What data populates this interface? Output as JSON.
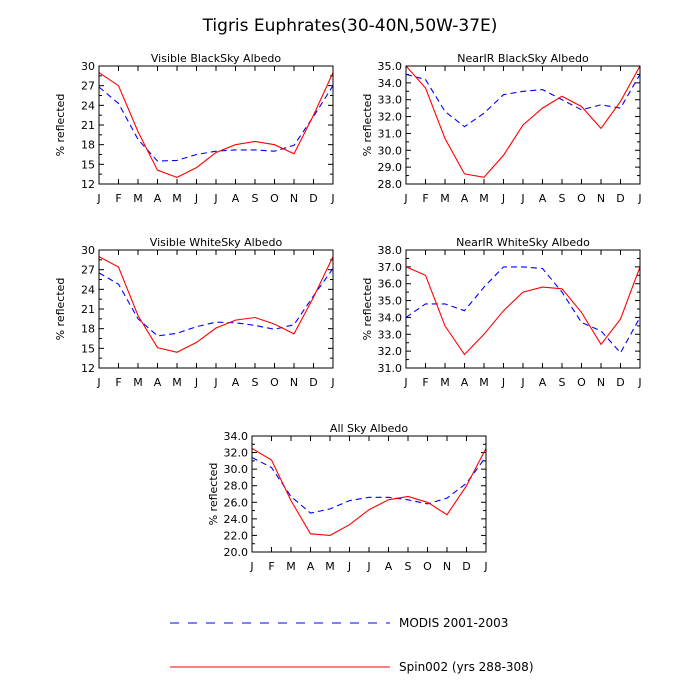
{
  "figure": {
    "title": "Tigris Euphrates(30-40N,50W-37E)",
    "legend": [
      {
        "label": "MODIS 2001-2003",
        "color": "#0000ff",
        "dash": "dashed"
      },
      {
        "label": "Spin002 (yrs 288-308)",
        "color": "#ff0000",
        "dash": "solid"
      }
    ]
  },
  "chart_data": [
    {
      "type": "line",
      "title": "Visible BlackSky Albedo",
      "ylabel": "% reflected",
      "categories": [
        "J",
        "F",
        "M",
        "A",
        "M",
        "J",
        "J",
        "A",
        "S",
        "O",
        "N",
        "D",
        "J"
      ],
      "ylim": [
        12,
        30
      ],
      "yticks": [
        "12",
        "15",
        "18",
        "21",
        "24",
        "27",
        "30"
      ],
      "series": [
        {
          "name": "MODIS 2001-2003",
          "color": "#0000ff",
          "dash": "dashed",
          "values": [
            26.8,
            24.3,
            18.8,
            15.5,
            15.6,
            16.5,
            17.0,
            17.2,
            17.2,
            17.0,
            17.9,
            22.3,
            27.0
          ]
        },
        {
          "name": "Spin002 (yrs 288-308)",
          "color": "#ff0000",
          "dash": "solid",
          "values": [
            29.0,
            27.0,
            20.0,
            14.1,
            13.0,
            14.5,
            16.8,
            18.0,
            18.5,
            18.0,
            16.6,
            22.5,
            29.0
          ]
        }
      ]
    },
    {
      "type": "line",
      "title": "NearIR BlackSky Albedo",
      "ylabel": "% reflected",
      "categories": [
        "J",
        "F",
        "M",
        "A",
        "M",
        "J",
        "J",
        "A",
        "S",
        "O",
        "N",
        "D",
        "J"
      ],
      "ylim": [
        28,
        35
      ],
      "yticks": [
        "28.0",
        "29.0",
        "30.0",
        "31.0",
        "32.0",
        "33.0",
        "34.0",
        "35.0"
      ],
      "series": [
        {
          "name": "MODIS 2001-2003",
          "color": "#0000ff",
          "dash": "dashed",
          "values": [
            34.5,
            34.2,
            32.3,
            31.4,
            32.2,
            33.3,
            33.5,
            33.6,
            33.0,
            32.4,
            32.7,
            32.5,
            34.5
          ]
        },
        {
          "name": "Spin002 (yrs 288-308)",
          "color": "#ff0000",
          "dash": "solid",
          "values": [
            35.0,
            33.7,
            30.7,
            28.6,
            28.4,
            29.7,
            31.5,
            32.5,
            33.2,
            32.6,
            31.3,
            32.9,
            35.0
          ]
        }
      ]
    },
    {
      "type": "line",
      "title": "Visible WhiteSky Albedo",
      "ylabel": "% reflected",
      "categories": [
        "J",
        "F",
        "M",
        "A",
        "M",
        "J",
        "J",
        "A",
        "S",
        "O",
        "N",
        "D",
        "J"
      ],
      "ylim": [
        12,
        30
      ],
      "yticks": [
        "12",
        "15",
        "18",
        "21",
        "24",
        "27",
        "30"
      ],
      "series": [
        {
          "name": "MODIS 2001-2003",
          "color": "#0000ff",
          "dash": "dashed",
          "values": [
            26.5,
            24.8,
            19.5,
            16.9,
            17.3,
            18.3,
            19.0,
            18.9,
            18.5,
            17.9,
            18.6,
            23.0,
            27.2
          ]
        },
        {
          "name": "Spin002 (yrs 288-308)",
          "color": "#ff0000",
          "dash": "solid",
          "values": [
            29.0,
            27.4,
            20.0,
            15.1,
            14.4,
            15.9,
            18.1,
            19.3,
            19.7,
            18.7,
            17.2,
            22.8,
            29.0
          ]
        }
      ]
    },
    {
      "type": "line",
      "title": "NearIR WhiteSky Albedo",
      "ylabel": "% reflected",
      "categories": [
        "J",
        "F",
        "M",
        "A",
        "M",
        "J",
        "J",
        "A",
        "S",
        "O",
        "N",
        "D",
        "J"
      ],
      "ylim": [
        31,
        38
      ],
      "yticks": [
        "31.0",
        "32.0",
        "33.0",
        "34.0",
        "35.0",
        "36.0",
        "37.0",
        "38.0"
      ],
      "series": [
        {
          "name": "MODIS 2001-2003",
          "color": "#0000ff",
          "dash": "dashed",
          "values": [
            34.0,
            34.8,
            34.8,
            34.4,
            35.8,
            37.0,
            37.0,
            36.9,
            35.5,
            33.7,
            33.2,
            31.9,
            34.0
          ]
        },
        {
          "name": "Spin002 (yrs 288-308)",
          "color": "#ff0000",
          "dash": "solid",
          "values": [
            37.0,
            36.5,
            33.5,
            31.8,
            33.0,
            34.4,
            35.5,
            35.8,
            35.7,
            34.3,
            32.4,
            33.9,
            37.0
          ]
        }
      ]
    },
    {
      "type": "line",
      "title": "All Sky Albedo",
      "ylabel": "% reflected",
      "categories": [
        "J",
        "F",
        "M",
        "A",
        "M",
        "J",
        "J",
        "A",
        "S",
        "O",
        "N",
        "D",
        "J"
      ],
      "ylim": [
        20,
        34
      ],
      "yticks": [
        "20.0",
        "22.0",
        "24.0",
        "26.0",
        "28.0",
        "30.0",
        "32.0",
        "34.0"
      ],
      "series": [
        {
          "name": "MODIS 2001-2003",
          "color": "#0000ff",
          "dash": "dashed",
          "values": [
            31.4,
            30.2,
            26.7,
            24.7,
            25.2,
            26.2,
            26.6,
            26.6,
            26.3,
            25.8,
            26.5,
            28.3,
            31.5
          ]
        },
        {
          "name": "Spin002 (yrs 288-308)",
          "color": "#ff0000",
          "dash": "solid",
          "values": [
            32.5,
            31.1,
            26.2,
            22.2,
            22.0,
            23.3,
            25.1,
            26.3,
            26.7,
            26.0,
            24.5,
            28.0,
            32.5
          ]
        }
      ]
    }
  ]
}
